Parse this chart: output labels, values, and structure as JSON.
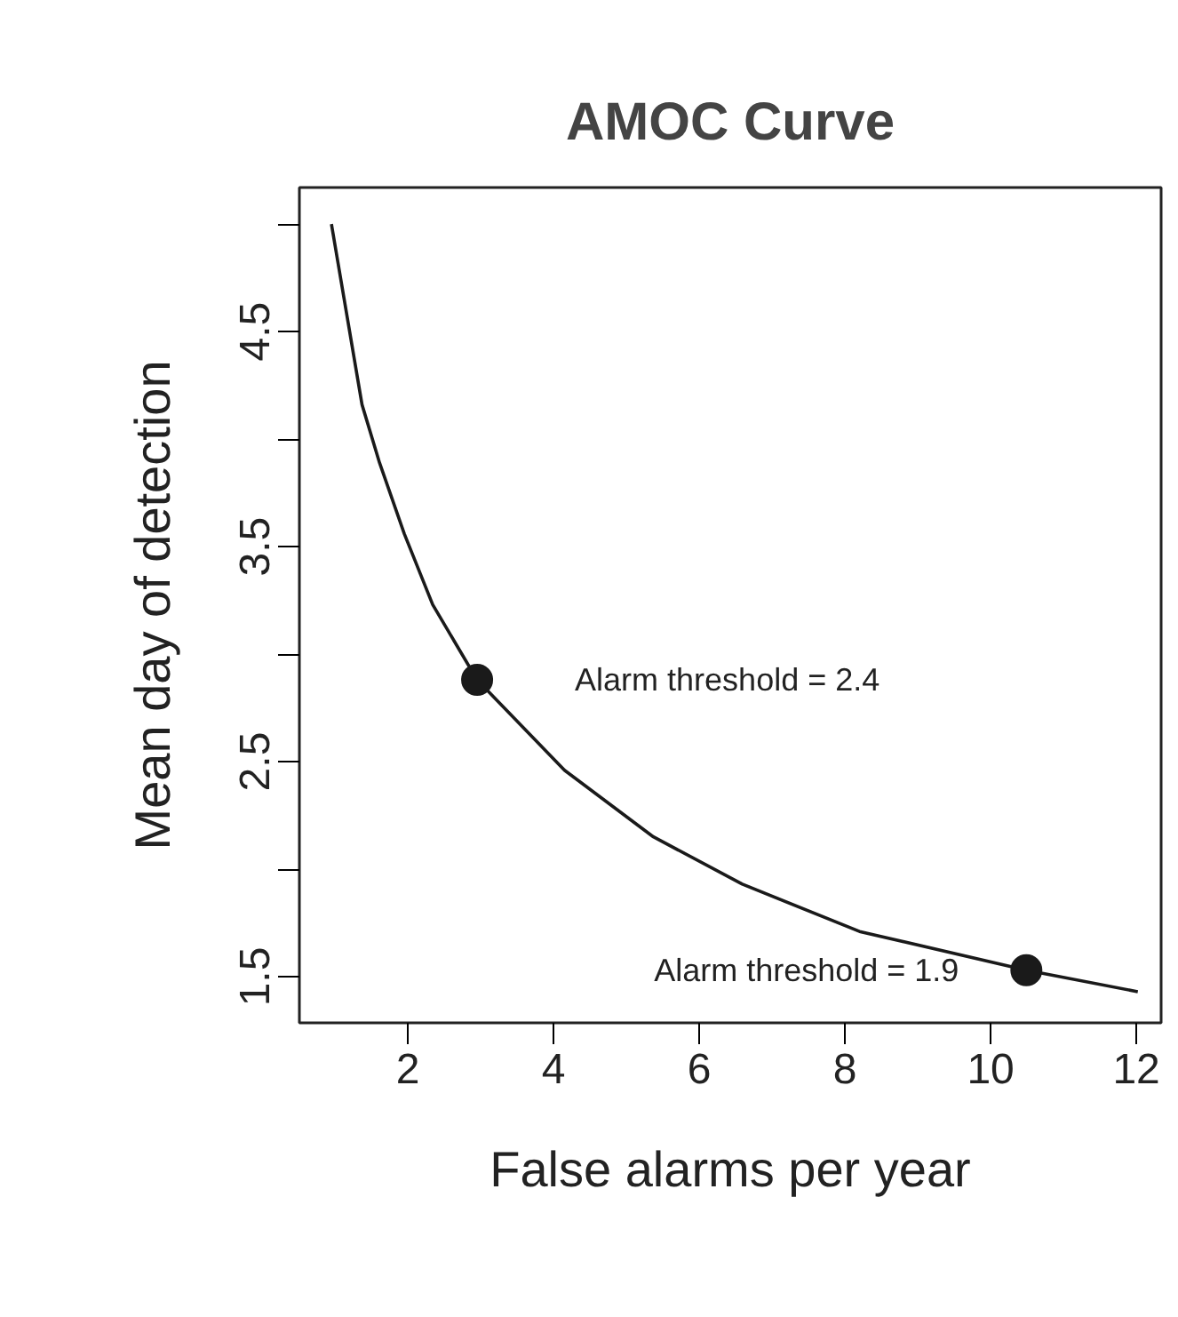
{
  "chart_data": {
    "type": "line",
    "title": "AMOC Curve",
    "xlabel": "False alarms per year",
    "ylabel": "Mean day of detection",
    "xlim": [
      0.51,
      12.34
    ],
    "ylim": [
      1.285,
      5.17
    ],
    "xticks": [
      2,
      4,
      6,
      8,
      10,
      12
    ],
    "yticks": [
      1.5,
      {
        "value": 2,
        "label": null
      },
      2.5,
      {
        "value": 3,
        "label": null
      },
      3.5,
      {
        "value": 4,
        "label": null
      },
      4.5,
      {
        "value": 5,
        "label": null
      }
    ],
    "grid": false,
    "series": [
      {
        "color": "#1a1a1a",
        "marker": "none",
        "line_style": "solid",
        "x": [
          0.95,
          1.12,
          1.37,
          1.61,
          1.95,
          2.34,
          2.95,
          4.15,
          5.37,
          6.59,
          8.2,
          10.49,
          12.02
        ],
        "values": [
          5.0,
          4.66,
          4.16,
          3.89,
          3.56,
          3.23,
          2.88,
          2.46,
          2.15,
          1.93,
          1.71,
          1.53,
          1.43
        ]
      },
      {
        "type": "scatter",
        "color": "#1a1a1a",
        "marker": "circle",
        "x": [
          2.95,
          10.49
        ],
        "values": [
          2.88,
          1.53
        ]
      }
    ],
    "annotations": [
      "Alarm threshold = 2.4",
      "Alarm threshold = 1.9"
    ]
  }
}
